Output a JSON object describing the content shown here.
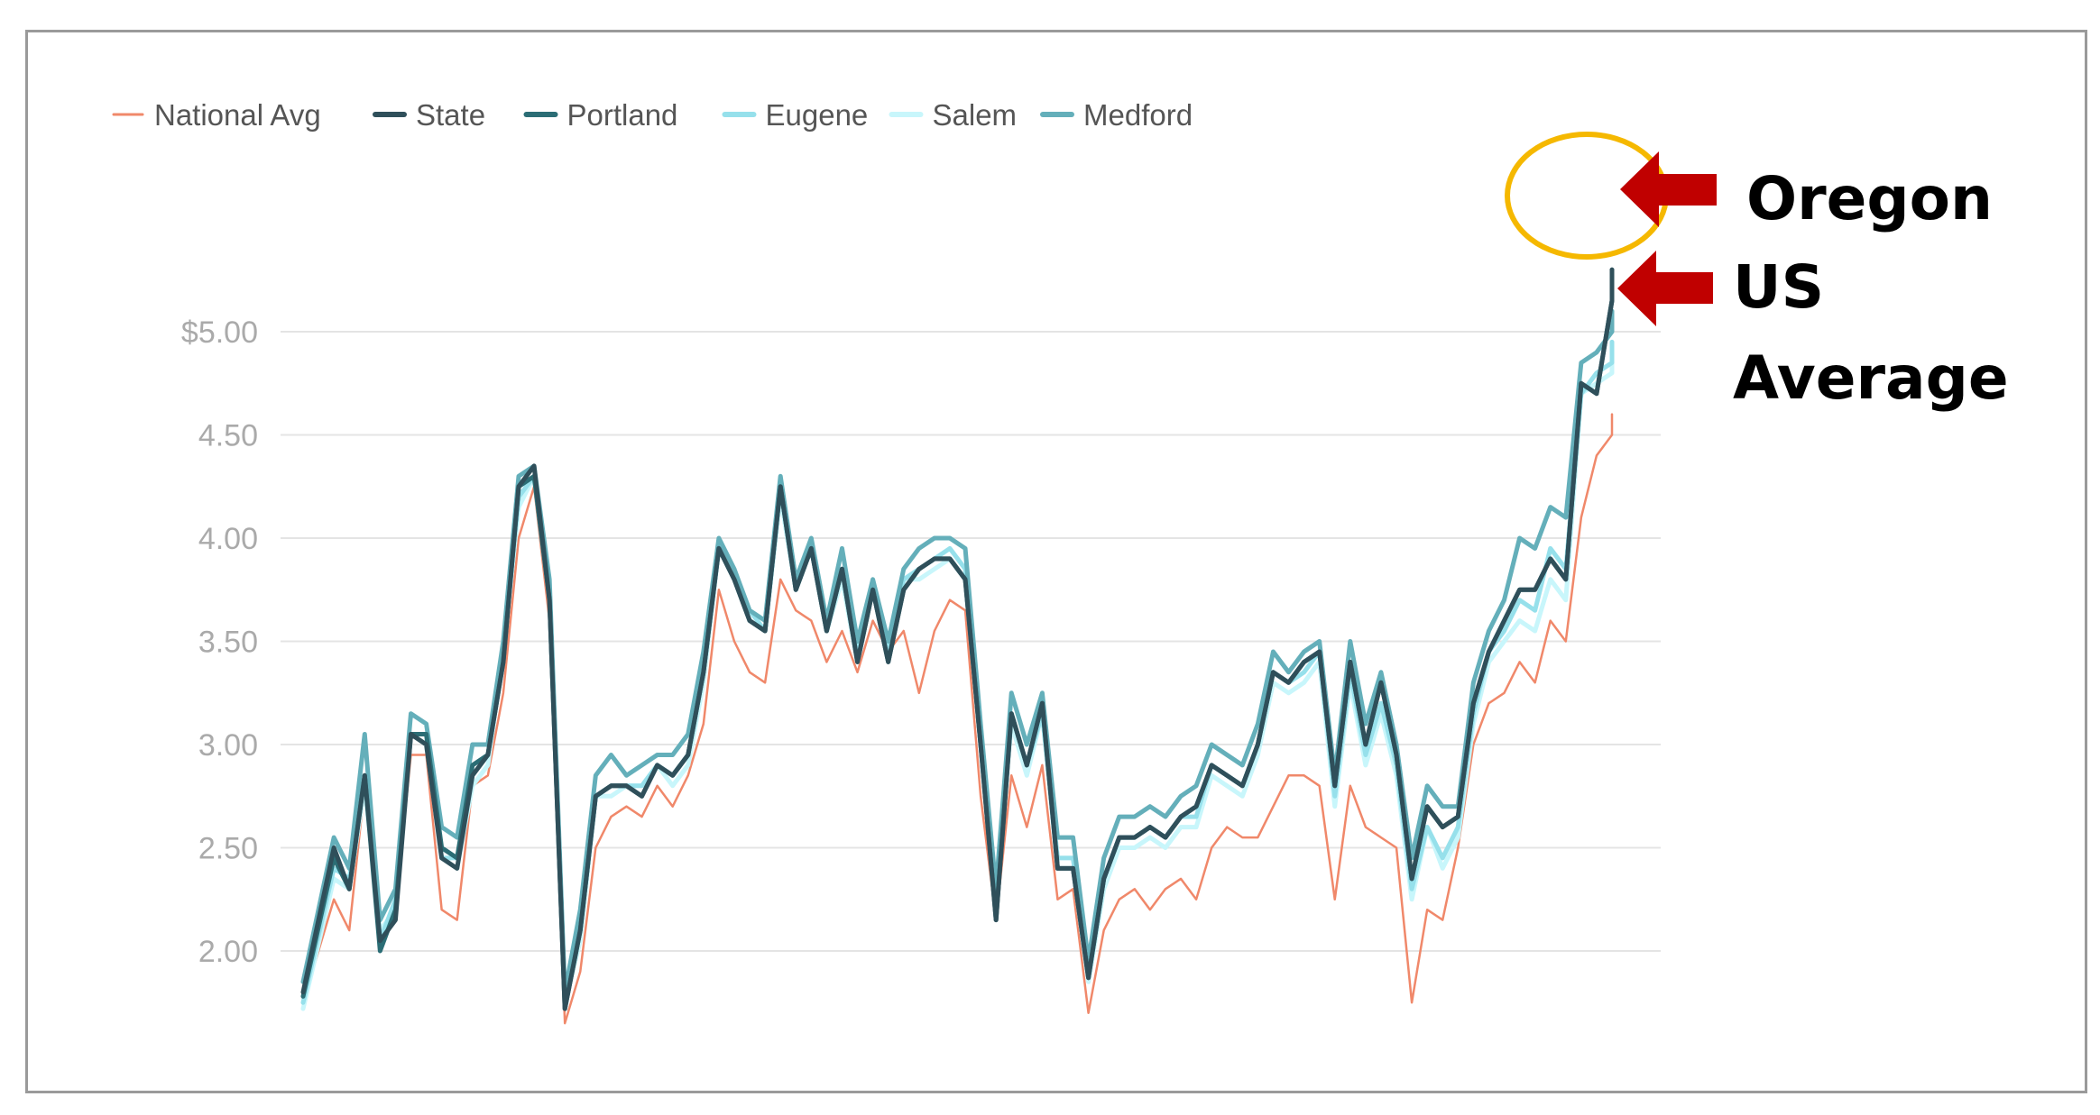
{
  "chart_data": {
    "type": "line",
    "title": "",
    "xlabel": "",
    "ylabel": "",
    "ylim": [
      1.6,
      5.4
    ],
    "y_ticks": [
      {
        "value": 5.0,
        "label": "$5.00"
      },
      {
        "value": 4.5,
        "label": "4.50"
      },
      {
        "value": 4.0,
        "label": "4.00"
      },
      {
        "value": 3.5,
        "label": "3.50"
      },
      {
        "value": 3.0,
        "label": "3.00"
      },
      {
        "value": 2.5,
        "label": "2.50"
      },
      {
        "value": 2.0,
        "label": "2.00"
      }
    ],
    "grid": true,
    "legend_position": "top-left",
    "x_count": 130,
    "anchor_x": [
      0,
      2,
      3,
      4,
      5,
      6,
      7,
      8,
      9,
      10,
      11,
      12,
      13,
      14,
      15,
      16,
      17,
      18,
      19,
      20,
      21,
      22,
      23,
      24,
      25,
      26,
      27,
      28,
      29,
      30,
      31,
      32,
      33,
      34,
      35,
      36,
      37,
      38,
      39,
      40,
      41,
      42,
      43,
      44,
      45,
      46,
      47,
      48,
      49,
      50,
      51,
      52,
      53,
      54,
      55,
      56,
      57,
      58,
      59,
      60,
      61,
      62,
      63,
      64,
      65,
      66,
      67,
      68,
      69,
      70,
      71,
      72,
      73,
      74,
      75,
      76,
      77,
      78,
      79,
      80,
      81,
      82,
      83,
      84,
      85,
      86,
      87,
      88,
      89,
      90,
      91,
      92,
      93,
      94,
      95,
      96,
      97,
      98,
      99,
      100,
      101,
      102,
      103,
      104,
      105,
      106,
      107,
      108,
      109,
      110,
      111,
      112,
      113,
      114,
      115,
      116,
      117,
      118,
      119,
      120,
      121,
      122,
      123,
      124,
      125,
      126,
      127,
      128,
      129
    ],
    "series": [
      {
        "name": "National Avg",
        "color": "#f0886a",
        "width": 2.5,
        "values": [
          1.75,
          2.25,
          2.1,
          2.8,
          2.1,
          2.2,
          2.95,
          2.95,
          2.2,
          2.15,
          2.8,
          2.85,
          3.25,
          4.0,
          4.25,
          3.6,
          1.65,
          1.9,
          2.5,
          2.65,
          2.7,
          2.65,
          2.8,
          2.7,
          2.85,
          3.1,
          3.75,
          3.5,
          3.35,
          3.3,
          3.8,
          3.65,
          3.6,
          3.4,
          3.55,
          3.35,
          3.6,
          3.45,
          3.55,
          3.25,
          3.55,
          3.7,
          3.65,
          2.75,
          2.15,
          2.85,
          2.6,
          2.9,
          2.25,
          2.3,
          1.7,
          2.1,
          2.25,
          2.3,
          2.2,
          2.3,
          2.35,
          2.25,
          2.5,
          2.6,
          2.55,
          2.55,
          2.7,
          2.85,
          2.85,
          2.8,
          2.25,
          2.8,
          2.6,
          2.55,
          2.5,
          1.75,
          2.2,
          2.15,
          2.5,
          3.0,
          3.2,
          3.25,
          3.4,
          3.3,
          3.6,
          3.5,
          4.1,
          4.4,
          4.5,
          4.6,
          4.6,
          4.6,
          4.6,
          4.6,
          4.6,
          4.6,
          4.6,
          4.6,
          4.6,
          4.6,
          4.6,
          4.6,
          4.6,
          4.6,
          4.6,
          4.6,
          4.6,
          4.6,
          4.6,
          4.6,
          4.6,
          4.6,
          4.6,
          4.6,
          4.6,
          4.6,
          4.6,
          4.6,
          4.6,
          4.6,
          4.6,
          4.6,
          4.6,
          4.6,
          4.6,
          4.6,
          4.6,
          4.6,
          4.6,
          4.6,
          4.6,
          4.6,
          4.6
        ]
      },
      {
        "name": "Salem",
        "color": "#c8f6fb",
        "width": 5,
        "values": [
          1.72,
          2.35,
          2.3,
          2.8,
          2.1,
          2.2,
          3.05,
          3.0,
          2.45,
          2.4,
          2.8,
          2.9,
          3.45,
          4.15,
          4.3,
          3.7,
          1.75,
          2.05,
          2.75,
          2.75,
          2.8,
          2.8,
          2.9,
          2.8,
          2.9,
          3.3,
          3.95,
          3.8,
          3.6,
          3.55,
          4.2,
          3.75,
          3.95,
          3.55,
          3.8,
          3.4,
          3.75,
          3.4,
          3.8,
          3.8,
          3.85,
          3.9,
          3.8,
          3.0,
          2.25,
          3.1,
          2.85,
          3.15,
          2.4,
          2.4,
          1.85,
          2.3,
          2.5,
          2.5,
          2.55,
          2.5,
          2.6,
          2.6,
          2.85,
          2.8,
          2.75,
          2.95,
          3.3,
          3.25,
          3.3,
          3.4,
          2.7,
          3.3,
          2.9,
          3.15,
          2.85,
          2.25,
          2.6,
          2.4,
          2.55,
          3.1,
          3.4,
          3.5,
          3.6,
          3.55,
          3.8,
          3.7,
          4.7,
          4.75,
          4.8,
          4.9,
          4.9,
          4.9,
          4.9,
          4.9,
          4.9,
          4.9,
          4.9,
          4.9,
          4.9,
          4.9,
          4.9,
          4.9,
          4.9,
          4.9,
          4.9,
          4.9,
          4.9,
          4.9,
          4.9,
          4.9,
          4.9,
          4.9,
          4.9,
          4.9,
          4.9,
          4.9,
          4.9,
          4.9,
          4.9,
          4.9,
          4.9,
          4.9,
          4.9,
          4.9,
          4.9,
          4.9,
          4.9,
          4.9,
          4.9,
          4.9,
          4.9,
          4.9,
          4.9
        ]
      },
      {
        "name": "Eugene",
        "color": "#96e0eb",
        "width": 5,
        "values": [
          1.75,
          2.4,
          2.35,
          2.85,
          2.05,
          2.25,
          3.05,
          3.05,
          2.45,
          2.45,
          2.85,
          2.95,
          3.45,
          4.2,
          4.3,
          3.75,
          1.75,
          2.1,
          2.75,
          2.8,
          2.8,
          2.8,
          2.9,
          2.85,
          2.95,
          3.35,
          3.95,
          3.8,
          3.65,
          3.55,
          4.25,
          3.75,
          3.95,
          3.55,
          3.85,
          3.45,
          3.75,
          3.45,
          3.8,
          3.85,
          3.9,
          3.95,
          3.85,
          3.0,
          2.25,
          3.15,
          2.9,
          3.15,
          2.45,
          2.45,
          1.9,
          2.35,
          2.55,
          2.55,
          2.6,
          2.55,
          2.65,
          2.65,
          2.9,
          2.85,
          2.8,
          3.0,
          3.35,
          3.3,
          3.35,
          3.45,
          2.75,
          3.35,
          2.95,
          3.2,
          2.9,
          2.3,
          2.6,
          2.45,
          2.6,
          3.15,
          3.45,
          3.55,
          3.7,
          3.65,
          3.95,
          3.85,
          4.7,
          4.8,
          4.85,
          4.95,
          4.95,
          4.95,
          4.95,
          4.95,
          4.95,
          4.95,
          4.95,
          4.95,
          4.95,
          4.95,
          4.95,
          4.95,
          4.95,
          4.95,
          4.95,
          4.95,
          4.95,
          4.95,
          4.95,
          4.95,
          4.95,
          4.95,
          4.95,
          4.95,
          4.95,
          4.95,
          4.95,
          4.95,
          4.95,
          4.95,
          4.95,
          4.95,
          4.95,
          4.95,
          4.95,
          4.95,
          4.95,
          4.95,
          4.95,
          4.95,
          4.95,
          4.95,
          4.95
        ]
      },
      {
        "name": "Medford",
        "color": "#64afba",
        "width": 5,
        "values": [
          1.85,
          2.55,
          2.4,
          3.05,
          2.15,
          2.3,
          3.15,
          3.1,
          2.6,
          2.55,
          3.0,
          3.0,
          3.5,
          4.3,
          4.35,
          3.8,
          1.8,
          2.2,
          2.85,
          2.95,
          2.85,
          2.9,
          2.95,
          2.95,
          3.05,
          3.45,
          4.0,
          3.85,
          3.65,
          3.6,
          4.3,
          3.8,
          4.0,
          3.6,
          3.95,
          3.5,
          3.8,
          3.5,
          3.85,
          3.95,
          4.0,
          4.0,
          3.95,
          3.1,
          2.3,
          3.25,
          3.0,
          3.25,
          2.55,
          2.55,
          1.95,
          2.45,
          2.65,
          2.65,
          2.7,
          2.65,
          2.75,
          2.8,
          3.0,
          2.95,
          2.9,
          3.1,
          3.45,
          3.35,
          3.45,
          3.5,
          2.85,
          3.5,
          3.1,
          3.35,
          3.0,
          2.45,
          2.8,
          2.7,
          2.7,
          3.3,
          3.55,
          3.7,
          4.0,
          3.95,
          4.15,
          4.1,
          4.85,
          4.9,
          5.0,
          5.1,
          5.1,
          5.1,
          5.1,
          5.1,
          5.1,
          5.1,
          5.1,
          5.1,
          5.1,
          5.1,
          5.1,
          5.1,
          5.1,
          5.1,
          5.1,
          5.1,
          5.1,
          5.1,
          5.1,
          5.1,
          5.1,
          5.1,
          5.1,
          5.1,
          5.1,
          5.1,
          5.1,
          5.1,
          5.1,
          5.1,
          5.1,
          5.1,
          5.1,
          5.1,
          5.1,
          5.1,
          5.1,
          5.1,
          5.1,
          5.1,
          5.1,
          5.1,
          5.1
        ]
      },
      {
        "name": "Portland",
        "color": "#2b6d75",
        "width": 5,
        "values": [
          1.78,
          2.45,
          2.3,
          2.85,
          2.0,
          2.2,
          3.05,
          3.05,
          2.5,
          2.45,
          2.9,
          2.95,
          3.4,
          4.25,
          4.3,
          3.7,
          1.72,
          2.1,
          2.75,
          2.8,
          2.8,
          2.75,
          2.9,
          2.85,
          2.95,
          3.35,
          3.95,
          3.8,
          3.6,
          3.55,
          4.25,
          3.75,
          3.95,
          3.55,
          3.85,
          3.4,
          3.75,
          3.4,
          3.75,
          3.85,
          3.9,
          3.9,
          3.8,
          3.0,
          2.15,
          3.15,
          2.9,
          3.2,
          2.4,
          2.4,
          1.87,
          2.35,
          2.55,
          2.55,
          2.6,
          2.55,
          2.65,
          2.7,
          2.9,
          2.85,
          2.8,
          3.0,
          3.35,
          3.3,
          3.4,
          3.45,
          2.8,
          3.4,
          3.0,
          3.3,
          2.95,
          2.35,
          2.7,
          2.6,
          2.65,
          3.2,
          3.45,
          3.6,
          3.75,
          3.75,
          3.9,
          3.8,
          4.75,
          4.7,
          5.15,
          5.3,
          5.3,
          5.3,
          5.3,
          5.3,
          5.3,
          5.3,
          5.3,
          5.3,
          5.3,
          5.3,
          5.3,
          5.3,
          5.3,
          5.3,
          5.3,
          5.3,
          5.3,
          5.3,
          5.3,
          5.3,
          5.3,
          5.3,
          5.3,
          5.3,
          5.3,
          5.3,
          5.3,
          5.3,
          5.3,
          5.3,
          5.3,
          5.3,
          5.3,
          5.3,
          5.3,
          5.3,
          5.3,
          5.3,
          5.3,
          5.3,
          5.3,
          5.3,
          5.3
        ]
      },
      {
        "name": "State",
        "color": "#2f4f5a",
        "width": 5,
        "values": [
          1.8,
          2.5,
          2.3,
          2.85,
          2.05,
          2.15,
          3.05,
          3.0,
          2.45,
          2.4,
          2.85,
          2.95,
          3.4,
          4.25,
          4.35,
          3.7,
          1.72,
          2.1,
          2.75,
          2.8,
          2.8,
          2.75,
          2.9,
          2.85,
          2.95,
          3.35,
          3.95,
          3.8,
          3.6,
          3.55,
          4.25,
          3.75,
          3.95,
          3.55,
          3.85,
          3.4,
          3.75,
          3.4,
          3.75,
          3.85,
          3.9,
          3.9,
          3.8,
          3.0,
          2.15,
          3.15,
          2.9,
          3.2,
          2.4,
          2.4,
          1.87,
          2.35,
          2.55,
          2.55,
          2.6,
          2.55,
          2.65,
          2.7,
          2.9,
          2.85,
          2.8,
          3.0,
          3.35,
          3.3,
          3.4,
          3.45,
          2.8,
          3.4,
          3.0,
          3.3,
          2.95,
          2.35,
          2.7,
          2.6,
          2.65,
          3.2,
          3.45,
          3.6,
          3.75,
          3.75,
          3.9,
          3.8,
          4.75,
          4.7,
          5.15,
          5.3,
          5.3,
          5.3,
          5.3,
          5.3,
          5.3,
          5.3,
          5.3,
          5.3,
          5.3,
          5.3,
          5.3,
          5.3,
          5.3,
          5.3,
          5.3,
          5.3,
          5.3,
          5.3,
          5.3,
          5.3,
          5.3,
          5.3,
          5.3,
          5.3,
          5.3,
          5.3,
          5.3,
          5.3,
          5.3,
          5.3,
          5.3,
          5.3,
          5.3,
          5.3,
          5.3,
          5.3,
          5.3,
          5.3,
          5.3,
          5.3,
          5.3,
          5.3,
          5.3
        ]
      }
    ],
    "legend": [
      {
        "label": "National Avg",
        "color": "#f0886a",
        "thick": false
      },
      {
        "label": "State",
        "color": "#2f4f5a",
        "thick": true
      },
      {
        "label": "Portland",
        "color": "#2b6d75",
        "thick": true
      },
      {
        "label": "Eugene",
        "color": "#96e0eb",
        "thick": true
      },
      {
        "label": "Salem",
        "color": "#c8f6fb",
        "thick": true
      },
      {
        "label": "Medford",
        "color": "#64afba",
        "thick": true
      }
    ],
    "annotations": [
      {
        "label": "Oregon"
      },
      {
        "label": "US"
      },
      {
        "label": "Average"
      }
    ],
    "annotation_colors": {
      "arrow": "#c00000",
      "highlight": "#f5b800"
    }
  }
}
